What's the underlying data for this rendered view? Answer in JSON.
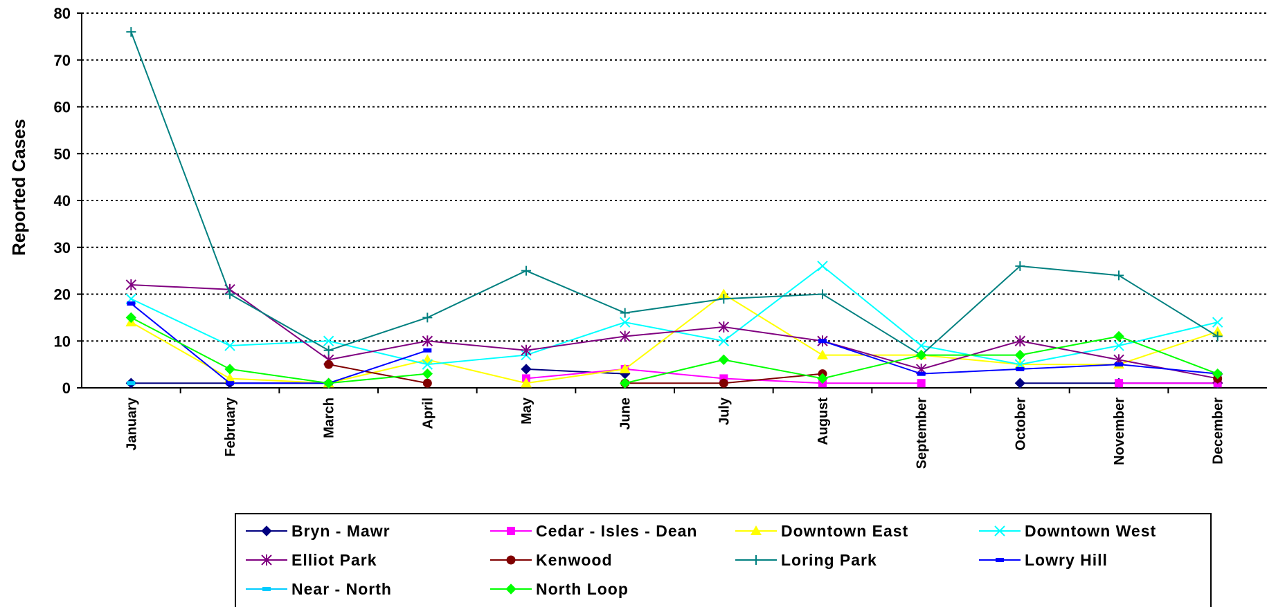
{
  "chart_data": {
    "type": "line",
    "title": "",
    "xlabel": "",
    "ylabel": "Reported Cases",
    "ylim": [
      0,
      80
    ],
    "y_ticks": [
      "0",
      "10",
      "20",
      "30",
      "40",
      "50",
      "60",
      "70",
      "80"
    ],
    "categories": [
      "January",
      "February",
      "March",
      "April",
      "May",
      "June",
      "July",
      "August",
      "September",
      "October",
      "November",
      "December"
    ],
    "grid": "horizontal dotted",
    "legend_position": "bottom",
    "series": [
      {
        "name": "Bryn - Mawr",
        "color": "#000080",
        "marker": "diamond",
        "values": [
          1,
          1,
          1,
          null,
          4,
          3,
          null,
          null,
          null,
          1,
          1,
          1
        ]
      },
      {
        "name": "Cedar - Isles - Dean",
        "color": "#ff00ff",
        "marker": "square",
        "values": [
          null,
          null,
          null,
          null,
          2,
          4,
          2,
          1,
          1,
          null,
          1,
          1
        ]
      },
      {
        "name": "Downtown East",
        "color": "#ffff00",
        "marker": "triangle",
        "values": [
          14,
          2,
          1,
          6,
          1,
          4,
          20,
          7,
          7,
          5,
          5,
          12
        ]
      },
      {
        "name": "Downtown West",
        "color": "#00ffff",
        "marker": "x",
        "values": [
          19,
          9,
          10,
          5,
          7,
          14,
          10,
          26,
          9,
          5,
          9,
          14
        ]
      },
      {
        "name": "Elliot Park",
        "color": "#800080",
        "marker": "star",
        "values": [
          22,
          21,
          6,
          10,
          8,
          11,
          13,
          10,
          4,
          10,
          6,
          2
        ]
      },
      {
        "name": "Kenwood",
        "color": "#800000",
        "marker": "circle",
        "values": [
          null,
          null,
          5,
          1,
          null,
          1,
          1,
          3,
          null,
          null,
          null,
          2
        ]
      },
      {
        "name": "Loring Park",
        "color": "#008080",
        "marker": "plus",
        "values": [
          76,
          20,
          8,
          15,
          25,
          16,
          19,
          20,
          7,
          26,
          24,
          11
        ]
      },
      {
        "name": "Lowry Hill",
        "color": "#0000ff",
        "marker": "dash",
        "values": [
          18,
          1,
          1,
          8,
          null,
          null,
          null,
          10,
          3,
          4,
          5,
          3
        ]
      },
      {
        "name": "Near - North",
        "color": "#00ccff",
        "marker": "dash",
        "values": [
          1,
          null,
          null,
          null,
          null,
          null,
          null,
          null,
          null,
          null,
          null,
          null
        ]
      },
      {
        "name": "North Loop",
        "color": "#00ff00",
        "marker": "diamond",
        "values": [
          15,
          4,
          1,
          3,
          null,
          1,
          6,
          2,
          7,
          7,
          11,
          3
        ]
      }
    ]
  }
}
